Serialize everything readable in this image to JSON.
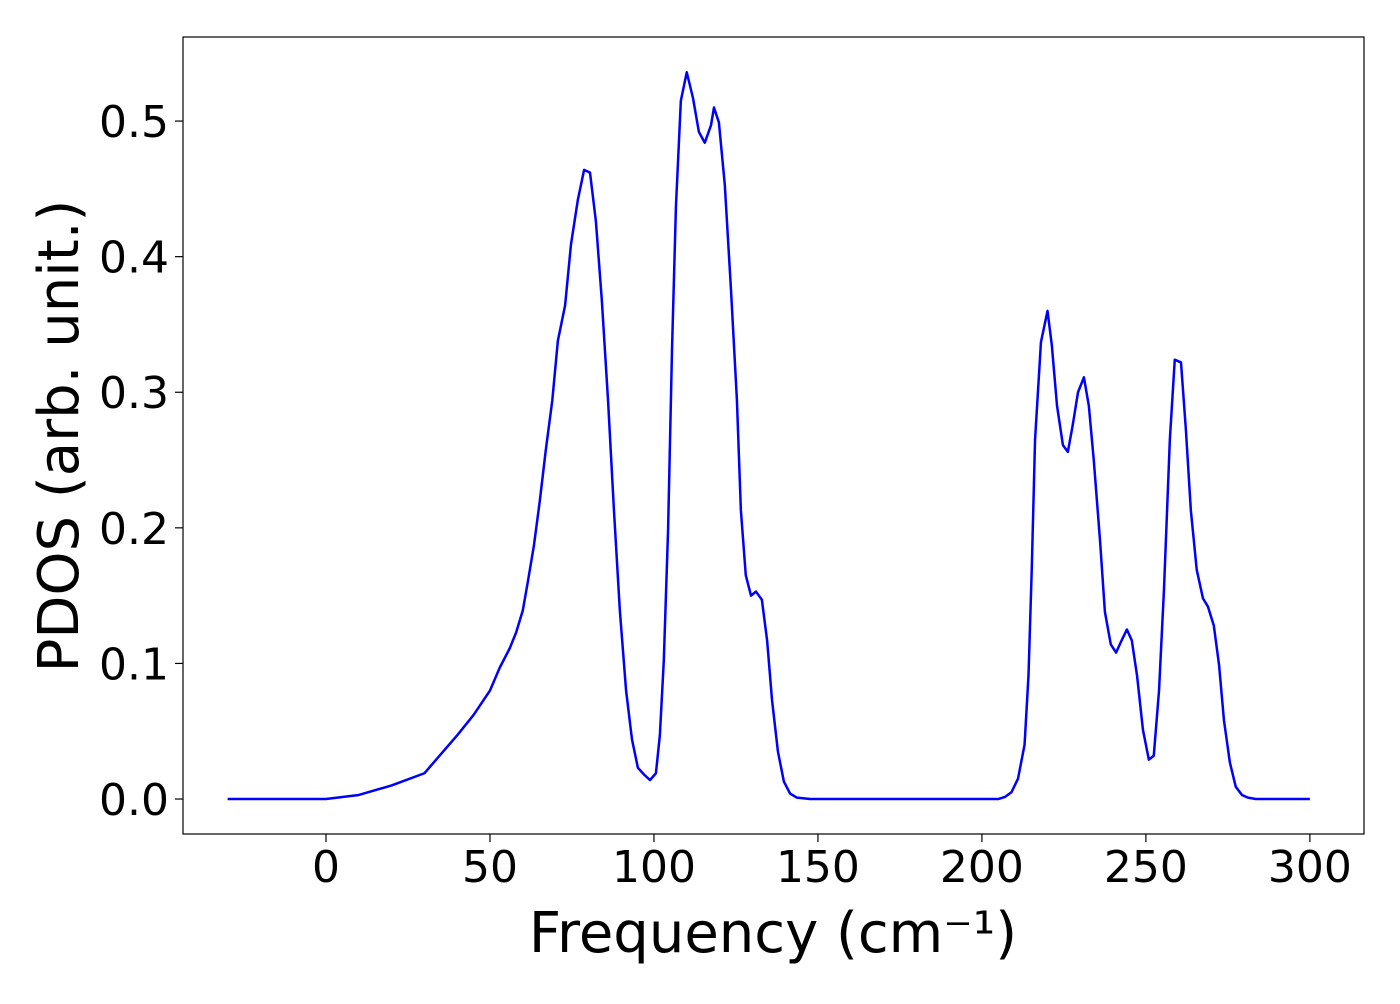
{
  "chart_data": {
    "type": "line",
    "xlabel": "Frequency (cm⁻¹)",
    "ylabel": "PDOS (arb. unit.)",
    "x": [
      -30,
      0,
      10,
      20,
      30,
      40,
      45,
      50,
      53,
      56,
      58,
      60,
      61.6,
      63.4,
      65.2,
      67,
      69,
      70.7,
      72.9,
      74.7,
      76.8,
      78.7,
      80.5,
      82.3,
      84.1,
      86,
      87.8,
      89.6,
      91.5,
      93.3,
      95.1,
      97,
      98.8,
      100.6,
      101.8,
      103,
      104.3,
      105.5,
      106.7,
      108.2,
      110,
      111.9,
      113.7,
      115.5,
      117.4,
      118.3,
      119.8,
      121.6,
      123.5,
      125.3,
      126.5,
      128,
      129.6,
      131.1,
      132.9,
      134.5,
      136,
      137.8,
      139.6,
      141.5,
      143.6,
      147.6,
      205,
      207,
      209,
      211,
      213,
      214.2,
      215.2,
      216.2,
      218,
      220,
      221.3,
      222.9,
      224.7,
      226.2,
      227.7,
      229.3,
      231.1,
      232.6,
      234.1,
      236,
      237.5,
      239.3,
      240.9,
      242.4,
      244.2,
      245.7,
      247.3,
      249.1,
      250.9,
      252.4,
      254,
      255.5,
      257.3,
      258.8,
      260.7,
      262.2,
      263.7,
      265.5,
      267.4,
      268.9,
      270.7,
      272.3,
      273.8,
      275.6,
      277.4,
      279.3,
      281.1,
      283.5,
      300
    ],
    "series": [
      {
        "color": "#0000ff",
        "values": [
          0,
          0,
          0.003,
          0.01,
          0.019,
          0.047,
          0.062,
          0.08,
          0.097,
          0.111,
          0.123,
          0.139,
          0.161,
          0.187,
          0.22,
          0.257,
          0.294,
          0.338,
          0.364,
          0.409,
          0.442,
          0.464,
          0.462,
          0.426,
          0.368,
          0.294,
          0.213,
          0.139,
          0.08,
          0.044,
          0.023,
          0.018,
          0.014,
          0.019,
          0.047,
          0.102,
          0.198,
          0.331,
          0.437,
          0.515,
          0.536,
          0.517,
          0.492,
          0.484,
          0.497,
          0.51,
          0.499,
          0.453,
          0.375,
          0.294,
          0.213,
          0.165,
          0.15,
          0.153,
          0.147,
          0.117,
          0.073,
          0.035,
          0.013,
          0.004,
          0.001,
          0,
          0,
          0.0015,
          0.005,
          0.015,
          0.04,
          0.091,
          0.17,
          0.265,
          0.337,
          0.36,
          0.335,
          0.29,
          0.261,
          0.256,
          0.276,
          0.3,
          0.311,
          0.29,
          0.25,
          0.191,
          0.138,
          0.114,
          0.108,
          0.116,
          0.125,
          0.117,
          0.091,
          0.051,
          0.029,
          0.032,
          0.08,
          0.154,
          0.265,
          0.324,
          0.322,
          0.272,
          0.213,
          0.169,
          0.148,
          0.142,
          0.128,
          0.099,
          0.058,
          0.027,
          0.009,
          0.003,
          0.001,
          0,
          0
        ]
      }
    ],
    "xlim": [
      -43.6,
      316.5
    ],
    "ylim": [
      -0.0258,
      0.562
    ],
    "xticks": [
      0,
      50,
      100,
      150,
      200,
      250,
      300
    ],
    "yticks": [
      {
        "value": 0,
        "label": "0.0"
      },
      0.1,
      0.2,
      0.3,
      0.4,
      0.5
    ]
  }
}
